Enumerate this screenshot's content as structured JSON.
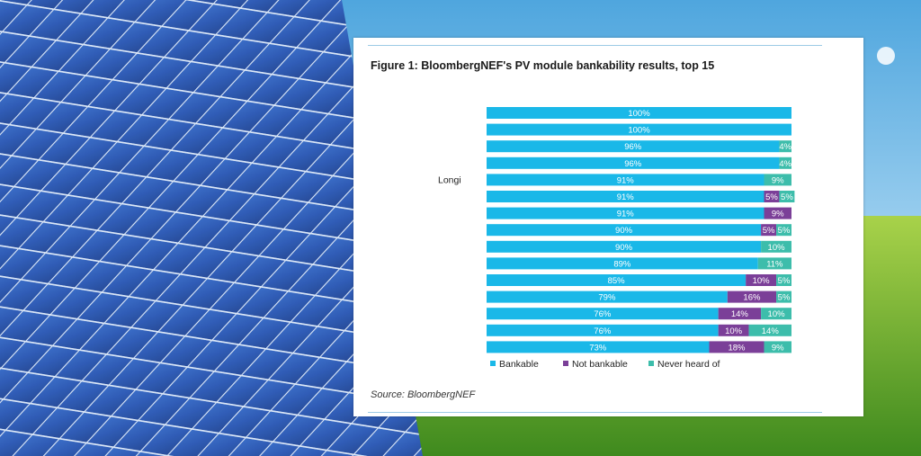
{
  "figure": {
    "title": "Figure 1: BloombergNEF's PV module bankability results, top 15",
    "source": "Source: BloombergNEF"
  },
  "chart_data": {
    "type": "bar",
    "orientation": "horizontal",
    "stacked": true,
    "title": "Figure 1: BloombergNEF's PV module bankability results, top 15",
    "categories": [
      "",
      "",
      "",
      "",
      "Longi",
      "",
      "",
      "",
      "",
      "",
      "",
      "",
      "",
      "",
      ""
    ],
    "series": [
      {
        "name": "Bankable",
        "color": "#1ab8e8",
        "values": [
          100,
          100,
          96,
          96,
          91,
          91,
          91,
          90,
          90,
          89,
          85,
          79,
          76,
          76,
          73
        ]
      },
      {
        "name": "Not bankable",
        "color": "#7b3f98",
        "values": [
          0,
          0,
          0,
          0,
          0,
          5,
          9,
          5,
          0,
          0,
          10,
          16,
          14,
          10,
          18
        ]
      },
      {
        "name": "Never heard of",
        "color": "#3dbdab",
        "values": [
          0,
          0,
          4,
          4,
          9,
          5,
          0,
          5,
          10,
          11,
          5,
          5,
          10,
          14,
          9
        ]
      }
    ],
    "data_labels": [
      [
        "100%",
        "",
        ""
      ],
      [
        "100%",
        "",
        ""
      ],
      [
        "96%",
        "",
        "4%"
      ],
      [
        "96%",
        "",
        "4%"
      ],
      [
        "91%",
        "",
        "9%"
      ],
      [
        "91%",
        "5%",
        "5%"
      ],
      [
        "91%",
        "9%",
        ""
      ],
      [
        "90%",
        "5%",
        "5%"
      ],
      [
        "90%",
        "",
        "10%"
      ],
      [
        "89%",
        "",
        "11%"
      ],
      [
        "85%",
        "10%",
        "5%"
      ],
      [
        "79%",
        "16%",
        "5%"
      ],
      [
        "76%",
        "14%",
        "10%"
      ],
      [
        "76%",
        "10%",
        "14%"
      ],
      [
        "73%",
        "18%",
        "9%"
      ]
    ],
    "xlim": [
      0,
      100
    ],
    "grid": false,
    "legend": "bottom"
  }
}
